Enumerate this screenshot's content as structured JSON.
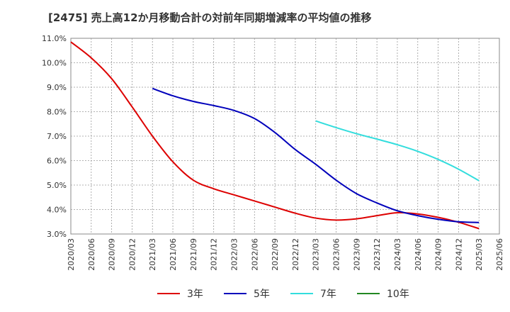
{
  "title": "[2475]  売上高12か月移動合計の対前年同期増減率の平均値の推移",
  "chart_data": {
    "type": "line",
    "title": "[2475]  売上高12か月移動合計の対前年同期増減率の平均値の推移",
    "xlabel": "",
    "ylabel": "",
    "ylim": [
      3.0,
      11.0
    ],
    "y_ticks": [
      "3.0%",
      "4.0%",
      "5.0%",
      "6.0%",
      "7.0%",
      "8.0%",
      "9.0%",
      "10.0%",
      "11.0%"
    ],
    "x_ticks": [
      "2020/03",
      "2020/06",
      "2020/09",
      "2020/12",
      "2021/03",
      "2021/06",
      "2021/09",
      "2021/12",
      "2022/03",
      "2022/06",
      "2022/09",
      "2022/12",
      "2023/03",
      "2023/06",
      "2023/09",
      "2023/12",
      "2024/03",
      "2024/06",
      "2024/09",
      "2024/12",
      "2025/03",
      "2025/06"
    ],
    "grid": true,
    "legend_position": "bottom",
    "series": [
      {
        "name": "3年",
        "color": "#dd0000",
        "points": [
          [
            "2020/03",
            10.85
          ],
          [
            "2020/06",
            10.2
          ],
          [
            "2020/09",
            9.35
          ],
          [
            "2020/12",
            8.2
          ],
          [
            "2021/03",
            7.0
          ],
          [
            "2021/06",
            5.95
          ],
          [
            "2021/09",
            5.2
          ],
          [
            "2021/12",
            4.85
          ],
          [
            "2022/03",
            4.6
          ],
          [
            "2022/06",
            4.35
          ],
          [
            "2022/09",
            4.1
          ],
          [
            "2022/12",
            3.85
          ],
          [
            "2023/03",
            3.65
          ],
          [
            "2023/06",
            3.57
          ],
          [
            "2023/09",
            3.62
          ],
          [
            "2023/12",
            3.75
          ],
          [
            "2024/03",
            3.87
          ],
          [
            "2024/06",
            3.82
          ],
          [
            "2024/09",
            3.68
          ],
          [
            "2024/12",
            3.48
          ],
          [
            "2025/03",
            3.22
          ]
        ]
      },
      {
        "name": "5年",
        "color": "#0000bb",
        "points": [
          [
            "2021/03",
            8.95
          ],
          [
            "2021/06",
            8.65
          ],
          [
            "2021/09",
            8.42
          ],
          [
            "2021/12",
            8.25
          ],
          [
            "2022/03",
            8.05
          ],
          [
            "2022/06",
            7.72
          ],
          [
            "2022/09",
            7.15
          ],
          [
            "2022/12",
            6.45
          ],
          [
            "2023/03",
            5.85
          ],
          [
            "2023/06",
            5.2
          ],
          [
            "2023/09",
            4.65
          ],
          [
            "2023/12",
            4.27
          ],
          [
            "2024/03",
            3.95
          ],
          [
            "2024/06",
            3.75
          ],
          [
            "2024/09",
            3.6
          ],
          [
            "2024/12",
            3.5
          ],
          [
            "2025/03",
            3.47
          ]
        ]
      },
      {
        "name": "7年",
        "color": "#33dddd",
        "points": [
          [
            "2023/03",
            7.62
          ],
          [
            "2023/06",
            7.35
          ],
          [
            "2023/09",
            7.1
          ],
          [
            "2023/12",
            6.88
          ],
          [
            "2024/03",
            6.65
          ],
          [
            "2024/06",
            6.38
          ],
          [
            "2024/09",
            6.05
          ],
          [
            "2024/12",
            5.65
          ],
          [
            "2025/03",
            5.18
          ]
        ]
      },
      {
        "name": "10年",
        "color": "#228822",
        "points": []
      }
    ]
  }
}
